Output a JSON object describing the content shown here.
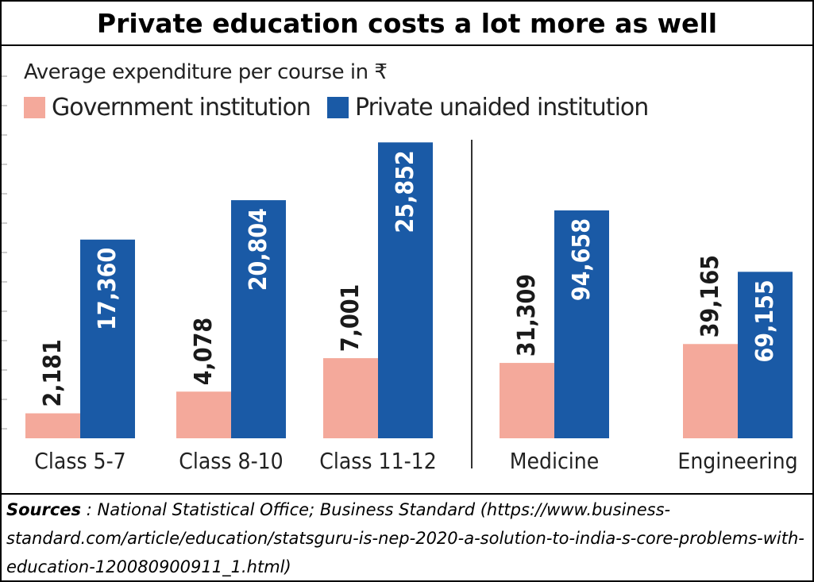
{
  "title": "Private education costs a lot more as well",
  "colors": {
    "government": "#f4a99b",
    "private": "#1a5aa6",
    "value_text_gov": "#1a1a1a",
    "value_text_private": "#ffffff"
  },
  "chart_data": {
    "type": "bar",
    "title": "Private education costs a lot more as well",
    "subtitle": "Average expenditure per course in ₹",
    "legend_placement": "top-left",
    "panels": [
      {
        "categories": [
          "Class 5-7",
          "Class 8-10",
          "Class 11-12"
        ],
        "series": [
          {
            "name": "Government institution",
            "values": [
              2181,
              4078,
              7001
            ],
            "labels": [
              "2,181",
              "4,078",
              "7,001"
            ]
          },
          {
            "name": "Private unaided institution",
            "values": [
              17360,
              20804,
              25852
            ],
            "labels": [
              "17,360",
              "20,804",
              "25,852"
            ]
          }
        ],
        "ylim": [
          0,
          26500
        ]
      },
      {
        "categories": [
          "Medicine",
          "Engineering"
        ],
        "series": [
          {
            "name": "Government institution",
            "values": [
              31309,
              39165
            ],
            "labels": [
              "31,309",
              "39,165"
            ]
          },
          {
            "name": "Private unaided institution",
            "values": [
              94658,
              69155
            ],
            "labels": [
              "94,658",
              "69,155"
            ]
          }
        ],
        "ylim": [
          0,
          126000
        ]
      }
    ]
  },
  "sources": {
    "label": "Sources",
    "text": " : National Statistical Office; Business Standard (https://www.business-standard.com/article/education/statsguru-is-nep-2020-a-solution-to-india-s-core-problems-with-education-120080900911_1.html)"
  }
}
